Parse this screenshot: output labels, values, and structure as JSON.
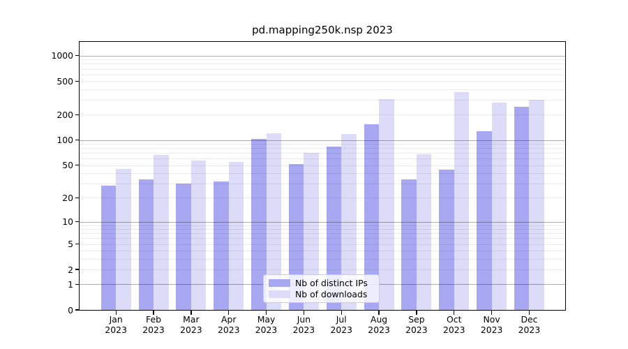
{
  "chart_data": {
    "type": "bar",
    "title": "pd.mapping250k.nsp 2023",
    "xlabel": "",
    "ylabel": "",
    "year": "2023",
    "categories": [
      "Jan",
      "Feb",
      "Mar",
      "Apr",
      "May",
      "Jun",
      "Jul",
      "Aug",
      "Sep",
      "Oct",
      "Nov",
      "Dec"
    ],
    "series": [
      {
        "name": "Nb of distinct IPs",
        "color": "#a7a7f2",
        "values": [
          28,
          34,
          30,
          32,
          104,
          52,
          84,
          155,
          34,
          44,
          128,
          247
        ]
      },
      {
        "name": "Nb of downloads",
        "color": "#dcdcf8",
        "values": [
          45,
          66,
          57,
          55,
          121,
          71,
          119,
          307,
          68,
          369,
          277,
          299
        ]
      }
    ],
    "yscale": "log10(1+y)",
    "ylim": [
      0,
      1430
    ],
    "y_ticks": [
      0,
      1,
      2,
      5,
      10,
      20,
      50,
      100,
      200,
      500,
      1000
    ],
    "grid": {
      "major": [
        1,
        10,
        100,
        1000
      ],
      "minor": [
        2,
        3,
        4,
        5,
        6,
        7,
        8,
        9,
        20,
        30,
        40,
        50,
        60,
        70,
        80,
        90,
        200,
        300,
        400,
        500,
        600,
        700,
        800,
        900
      ]
    },
    "legend_position": "lower center"
  },
  "colors": {
    "background": "#ffffff",
    "ips_bar": "#a7a7f2",
    "downloads_bar": "#dcdcf8",
    "grid_major": "rgba(0,0,0,0.32)",
    "grid_minor": "rgba(0,0,0,0.08)",
    "axis": "#000000",
    "legend_border": "#cccccc"
  }
}
